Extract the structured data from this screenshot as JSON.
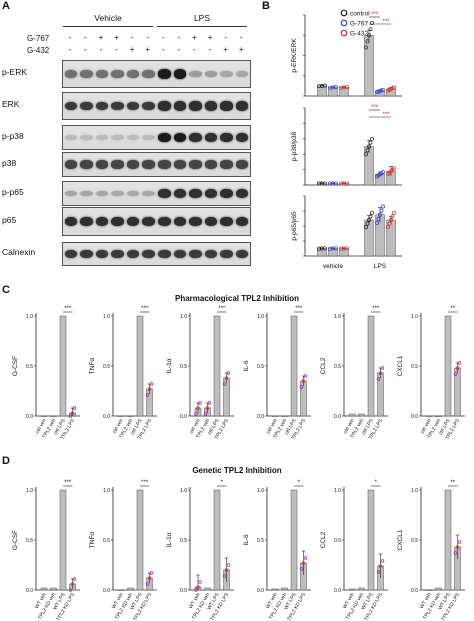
{
  "panel_letters": {
    "A": "A",
    "B": "B",
    "C": "C",
    "D": "D"
  },
  "panel_a": {
    "group_headers": [
      "Vehicle",
      "LPS"
    ],
    "row_labels": [
      "G-767",
      "G-432"
    ],
    "treatment_marks": {
      "G-767": [
        "-",
        "-",
        "+",
        "-",
        "-",
        "-",
        "+",
        "-",
        "-"
      ],
      "G-432": [
        "-",
        "-",
        "-",
        "-",
        "+",
        "-",
        "-",
        "+",
        "+"
      ]
    },
    "treatment_marks_full": {
      "G-767": [
        "-",
        "-",
        "+",
        "+",
        "-",
        "-",
        "-",
        "-",
        "+",
        "+",
        "-",
        "-"
      ],
      "G-432": [
        "-",
        "-",
        "-",
        "-",
        "+",
        "+",
        "-",
        "-",
        "-",
        "-",
        "+",
        "+"
      ]
    },
    "blots": [
      {
        "label": "p-ERK",
        "intensity": [
          0.55,
          0.55,
          0.55,
          0.55,
          0.55,
          0.55,
          0.95,
          0.95,
          0.35,
          0.35,
          0.3,
          0.3
        ]
      },
      {
        "label": "ERK",
        "intensity": [
          0.8,
          0.8,
          0.8,
          0.8,
          0.8,
          0.8,
          0.85,
          0.85,
          0.85,
          0.85,
          0.85,
          0.85
        ]
      },
      {
        "label": "p-p38",
        "intensity": [
          0.2,
          0.2,
          0.2,
          0.2,
          0.2,
          0.2,
          0.95,
          0.95,
          0.85,
          0.85,
          0.85,
          0.85
        ]
      },
      {
        "label": "p38",
        "intensity": [
          0.75,
          0.75,
          0.75,
          0.75,
          0.75,
          0.75,
          0.75,
          0.75,
          0.75,
          0.75,
          0.75,
          0.75
        ]
      },
      {
        "label": "p-p65",
        "intensity": [
          0.3,
          0.3,
          0.3,
          0.3,
          0.3,
          0.3,
          0.85,
          0.85,
          0.85,
          0.85,
          0.85,
          0.85
        ]
      },
      {
        "label": "p65",
        "intensity": [
          0.85,
          0.85,
          0.85,
          0.85,
          0.85,
          0.85,
          0.85,
          0.85,
          0.85,
          0.85,
          0.85,
          0.85
        ]
      },
      {
        "label": "Calnexin",
        "intensity": [
          0.8,
          0.8,
          0.8,
          0.8,
          0.8,
          0.8,
          0.8,
          0.8,
          0.8,
          0.8,
          0.8,
          0.8
        ]
      }
    ]
  },
  "colors": {
    "control": "#222222",
    "G-767": "#2f3fd0",
    "G-432": "#d8311e",
    "bar": "#bdbdbd",
    "sig": "#e0201e",
    "purple": "#a020c8"
  },
  "chart_data": [
    {
      "type": "bar",
      "panel": "B",
      "legend": [
        "control",
        "G-767",
        "G-432"
      ],
      "categories": [
        "vehicle",
        "LPS"
      ],
      "subplots": [
        {
          "ylabel": "p-ERK/ERK",
          "ylim": [
            0,
            8
          ],
          "series": [
            {
              "name": "control",
              "values": [
                1.0,
                6.0
              ],
              "err": [
                0.05,
                0.5
              ]
            },
            {
              "name": "G-767",
              "values": [
                0.85,
                0.5
              ],
              "err": [
                0.05,
                0.1
              ]
            },
            {
              "name": "G-432",
              "values": [
                0.85,
                0.7
              ],
              "err": [
                0.05,
                0.15
              ]
            }
          ],
          "sig": [
            "***",
            "***"
          ]
        },
        {
          "ylabel": "p-p38/p38",
          "ylim": [
            0,
            50
          ],
          "series": [
            {
              "name": "control",
              "values": [
                1,
                25
              ],
              "err": [
                0.3,
                4
              ]
            },
            {
              "name": "G-767",
              "values": [
                1,
                7
              ],
              "err": [
                0.3,
                1.5
              ]
            },
            {
              "name": "G-432",
              "values": [
                1,
                9
              ],
              "err": [
                0.3,
                3
              ]
            }
          ],
          "sig": [
            "***",
            "***"
          ]
        },
        {
          "ylabel": "p-p65/p65",
          "ylim": [
            0,
            8
          ],
          "series": [
            {
              "name": "control",
              "values": [
                1,
                4.8
              ],
              "err": [
                0.05,
                0.6
              ]
            },
            {
              "name": "G-767",
              "values": [
                1,
                5.5
              ],
              "err": [
                0.05,
                1.0
              ]
            },
            {
              "name": "G-432",
              "values": [
                1,
                4.8
              ],
              "err": [
                0.05,
                0.5
              ]
            }
          ],
          "sig": []
        }
      ]
    },
    {
      "type": "bar",
      "panel": "C",
      "title": "Pharmacological TPL2 Inhibition",
      "categories": [
        "ctrl veh",
        "TPL2 veh",
        "ctrl LPS",
        "TPL2 LPS"
      ],
      "ylim": [
        0,
        1.0
      ],
      "yticks": [
        "0.0",
        "0.5",
        "1.0"
      ],
      "subplots": [
        {
          "ylabel": "G-CSF",
          "values": [
            0.0,
            0.0,
            1.0,
            0.03
          ],
          "sig": "***"
        },
        {
          "ylabel": "TNFα",
          "values": [
            0.0,
            0.0,
            1.0,
            0.27
          ],
          "sig": "***"
        },
        {
          "ylabel": "IL-1α",
          "values": [
            0.08,
            0.08,
            1.0,
            0.38
          ],
          "sig": "***"
        },
        {
          "ylabel": "IL-6",
          "values": [
            0.0,
            0.0,
            1.0,
            0.35
          ],
          "sig": "***"
        },
        {
          "ylabel": "CCL2",
          "values": [
            0.02,
            0.02,
            1.0,
            0.43
          ],
          "sig": "***"
        },
        {
          "ylabel": "CXCL1",
          "values": [
            0.0,
            0.0,
            1.0,
            0.48
          ],
          "sig": "**"
        }
      ]
    },
    {
      "type": "bar",
      "panel": "D",
      "title": "Genetic TPL2 Inhibition",
      "categories": [
        "WT veh",
        "TPL2 KD veh",
        "WT LPS",
        "TPL2 KD LPS"
      ],
      "ylim": [
        0,
        1.0
      ],
      "yticks": [
        "0.0",
        "0.5",
        "1.0"
      ],
      "subplots": [
        {
          "ylabel": "G-CSF",
          "values": [
            0.02,
            0.02,
            1.0,
            0.06
          ],
          "sig": "***"
        },
        {
          "ylabel": "TNFα",
          "values": [
            0.0,
            0.02,
            1.0,
            0.12
          ],
          "sig": "***"
        },
        {
          "ylabel": "IL-1α",
          "values": [
            0.03,
            0.02,
            1.0,
            0.2
          ],
          "sig": "*"
        },
        {
          "ylabel": "IL-6",
          "values": [
            0.01,
            0.02,
            1.0,
            0.27
          ],
          "sig": "*"
        },
        {
          "ylabel": "CCL2",
          "values": [
            0.01,
            0.02,
            1.0,
            0.24
          ],
          "sig": "*"
        },
        {
          "ylabel": "CXCL1",
          "values": [
            0.0,
            0.02,
            1.0,
            0.43
          ],
          "sig": "**"
        }
      ]
    }
  ]
}
